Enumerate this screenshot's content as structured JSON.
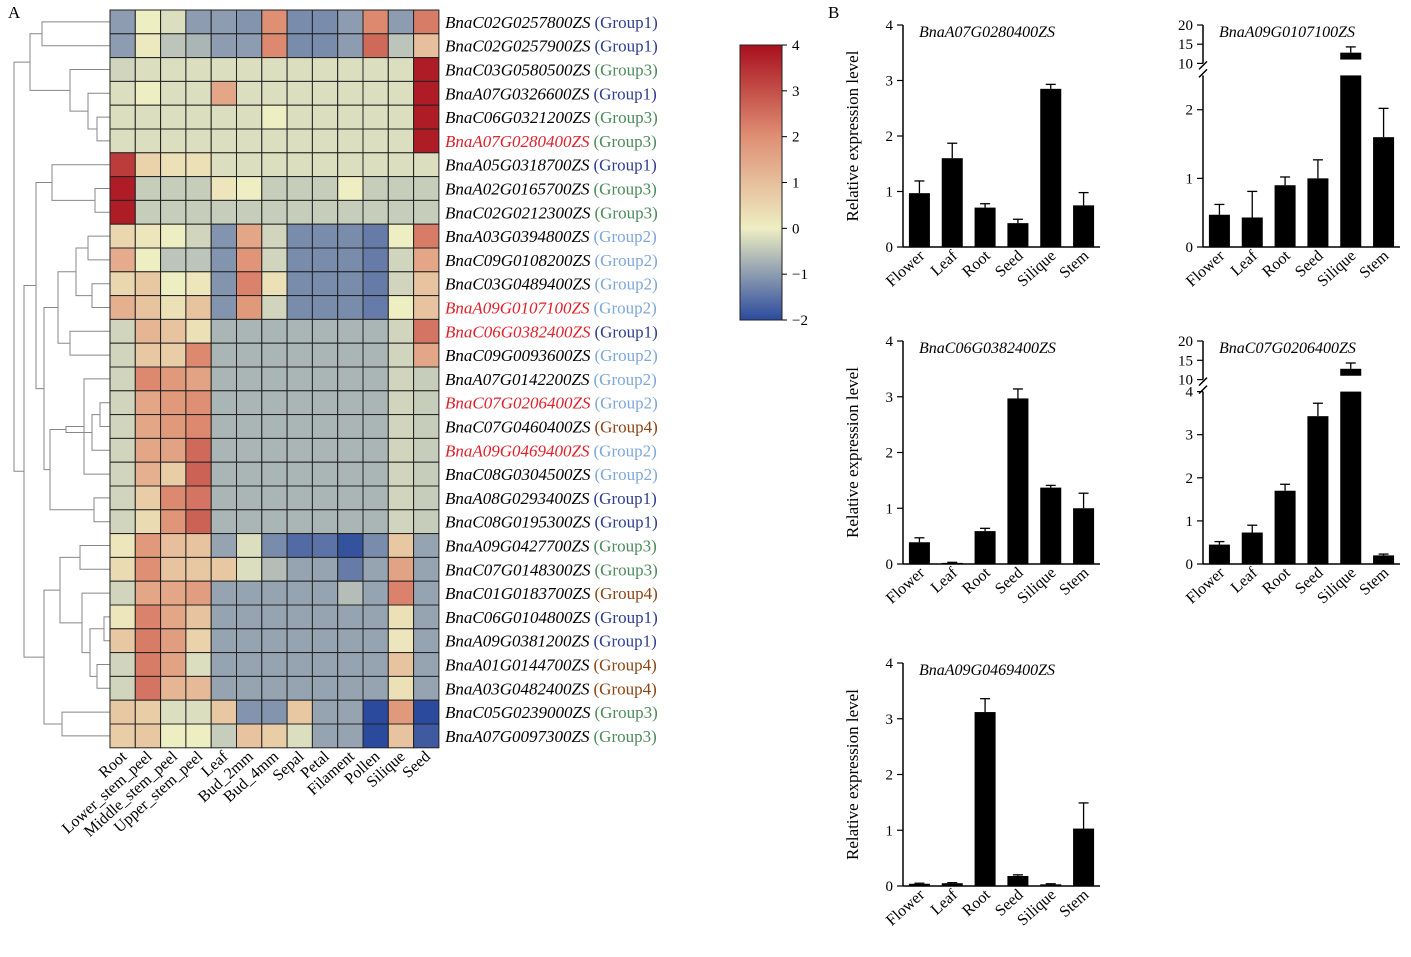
{
  "panel_labels": {
    "A": "A",
    "B": "B"
  },
  "chart_data": [
    {
      "type": "heatmap",
      "columns": [
        "Root",
        "Lower_stem_peel",
        "Middle_stem_peel",
        "Upper_stem_peel",
        "Leaf",
        "Bud_2mm",
        "Bud_4mm",
        "Sepal",
        "Petal",
        "Filament",
        "Pollen",
        "Silique",
        "Seed"
      ],
      "group_colors": {
        "Group1": "#2e3d8f",
        "Group2": "#7ea7d8",
        "Group3": "#4c8a5a",
        "Group4": "#8b4513"
      },
      "highlight_color": "#e0202a",
      "rows": [
        {
          "gene": "BnaC02G0257800ZS",
          "group": "(Group1)",
          "group_key": "Group1",
          "highlight": false,
          "values": [
            -1.0,
            0.0,
            -0.2,
            -1.0,
            -1.0,
            -1.1,
            2.0,
            -1.2,
            -1.2,
            -1.0,
            2.1,
            -1.0,
            2.3
          ]
        },
        {
          "gene": "BnaC02G0257900ZS",
          "group": "(Group1)",
          "group_key": "Group1",
          "highlight": false,
          "values": [
            -1.0,
            0.1,
            -0.5,
            -0.7,
            -1.0,
            -1.0,
            2.1,
            -1.2,
            -1.2,
            -1.0,
            2.6,
            -0.5,
            1.0
          ]
        },
        {
          "gene": "BnaC03G0580500ZS",
          "group": "(Group3)",
          "group_key": "Group3",
          "highlight": false,
          "values": [
            -0.3,
            -0.2,
            -0.2,
            -0.2,
            -0.2,
            -0.2,
            -0.2,
            -0.2,
            -0.2,
            -0.2,
            -0.2,
            -0.2,
            3.8
          ]
        },
        {
          "gene": "BnaA07G0326600ZS",
          "group": "(Group1)",
          "group_key": "Group1",
          "highlight": false,
          "values": [
            -0.2,
            0.0,
            -0.2,
            -0.2,
            1.5,
            -0.2,
            -0.2,
            -0.2,
            -0.2,
            -0.2,
            -0.2,
            -0.2,
            3.8
          ]
        },
        {
          "gene": "BnaC06G0321200ZS",
          "group": "(Group3)",
          "group_key": "Group3",
          "highlight": false,
          "values": [
            -0.2,
            -0.2,
            -0.2,
            -0.2,
            -0.2,
            -0.2,
            0.0,
            -0.2,
            -0.2,
            -0.2,
            -0.2,
            -0.2,
            3.8
          ]
        },
        {
          "gene": "BnaA07G0280400ZS",
          "group": "(Group3)",
          "group_key": "Group3",
          "highlight": true,
          "values": [
            -0.2,
            -0.2,
            -0.2,
            -0.2,
            -0.2,
            -0.2,
            -0.2,
            -0.2,
            -0.2,
            -0.2,
            -0.2,
            -0.2,
            3.8
          ]
        },
        {
          "gene": "BnaA05G0318700ZS",
          "group": "(Group1)",
          "group_key": "Group1",
          "highlight": false,
          "values": [
            3.3,
            0.6,
            0.3,
            0.3,
            -0.2,
            -0.2,
            -0.2,
            -0.2,
            -0.2,
            -0.2,
            -0.2,
            -0.2,
            -0.2
          ]
        },
        {
          "gene": "BnaA02G0165700ZS",
          "group": "(Group3)",
          "group_key": "Group3",
          "highlight": false,
          "values": [
            3.8,
            -0.4,
            -0.4,
            -0.4,
            0.2,
            0.0,
            -0.4,
            -0.4,
            -0.4,
            0.0,
            -0.4,
            -0.4,
            -0.4
          ]
        },
        {
          "gene": "BnaC02G0212300ZS",
          "group": "(Group3)",
          "group_key": "Group3",
          "highlight": false,
          "values": [
            3.8,
            -0.4,
            -0.4,
            -0.4,
            -0.4,
            -0.4,
            -0.4,
            -0.4,
            -0.4,
            -0.4,
            -0.4,
            -0.4,
            -0.4
          ]
        },
        {
          "gene": "BnaA03G0394800ZS",
          "group": "(Group2)",
          "group_key": "Group2",
          "highlight": false,
          "values": [
            0.5,
            0.2,
            0.0,
            -0.3,
            -1.1,
            1.5,
            -0.3,
            -1.2,
            -1.2,
            -1.2,
            -1.4,
            0.0,
            2.3
          ]
        },
        {
          "gene": "BnaC09G0108200ZS",
          "group": "(Group2)",
          "group_key": "Group2",
          "highlight": false,
          "values": [
            1.4,
            0.0,
            -0.5,
            -0.5,
            -1.1,
            1.9,
            -0.3,
            -1.2,
            -1.2,
            -1.2,
            -1.4,
            -0.3,
            1.5
          ]
        },
        {
          "gene": "BnaC03G0489400ZS",
          "group": "(Group2)",
          "group_key": "Group2",
          "highlight": false,
          "values": [
            0.5,
            0.8,
            0.0,
            0.2,
            -1.1,
            2.2,
            0.3,
            -1.2,
            -1.2,
            -1.2,
            -1.4,
            -0.3,
            0.9
          ]
        },
        {
          "gene": "BnaA09G0107100ZS",
          "group": "(Group2)",
          "group_key": "Group2",
          "highlight": true,
          "values": [
            1.3,
            0.9,
            0.3,
            0.9,
            -1.1,
            1.8,
            -0.3,
            -1.2,
            -1.2,
            -1.2,
            -1.4,
            0.0,
            0.9
          ]
        },
        {
          "gene": "BnaC06G0382400ZS",
          "group": "(Group1)",
          "group_key": "Group1",
          "highlight": true,
          "values": [
            -0.3,
            1.2,
            0.9,
            0.3,
            -0.7,
            -0.7,
            -0.7,
            -0.7,
            -0.7,
            -0.7,
            -0.7,
            -0.3,
            2.4
          ]
        },
        {
          "gene": "BnaC09G0093600ZS",
          "group": "(Group2)",
          "group_key": "Group2",
          "highlight": false,
          "values": [
            -0.3,
            0.8,
            0.7,
            2.1,
            -0.7,
            -0.7,
            -0.7,
            -0.7,
            -0.7,
            -0.7,
            -0.7,
            -0.3,
            1.5
          ]
        },
        {
          "gene": "BnaA07G0142200ZS",
          "group": "(Group2)",
          "group_key": "Group2",
          "highlight": false,
          "values": [
            -0.3,
            2.1,
            1.8,
            1.6,
            -0.7,
            -0.7,
            -0.7,
            -0.7,
            -0.7,
            -0.7,
            -0.7,
            -0.3,
            -0.4
          ]
        },
        {
          "gene": "BnaC07G0206400ZS",
          "group": "(Group2)",
          "group_key": "Group2",
          "highlight": true,
          "values": [
            -0.3,
            1.5,
            1.8,
            2.0,
            -0.7,
            -0.7,
            -0.7,
            -0.7,
            -0.7,
            -0.7,
            -0.7,
            -0.3,
            -0.4
          ]
        },
        {
          "gene": "BnaC07G0460400ZS",
          "group": "(Group4)",
          "group_key": "Group4",
          "highlight": false,
          "values": [
            -0.3,
            1.5,
            1.8,
            2.1,
            -0.7,
            -0.7,
            -0.7,
            -0.7,
            -0.7,
            -0.7,
            -0.7,
            -0.3,
            -0.4
          ]
        },
        {
          "gene": "BnaA09G0469400ZS",
          "group": "(Group2)",
          "group_key": "Group2",
          "highlight": true,
          "values": [
            -0.3,
            1.5,
            1.6,
            2.6,
            -0.7,
            -0.7,
            -0.7,
            -0.7,
            -0.7,
            -0.7,
            -0.7,
            -0.3,
            -0.4
          ]
        },
        {
          "gene": "BnaC08G0304500ZS",
          "group": "(Group2)",
          "group_key": "Group2",
          "highlight": false,
          "values": [
            -0.3,
            1.3,
            0.7,
            2.7,
            -0.7,
            -0.7,
            -0.7,
            -0.7,
            -0.7,
            -0.7,
            -0.7,
            -0.3,
            -0.4
          ]
        },
        {
          "gene": "BnaA08G0293400ZS",
          "group": "(Group1)",
          "group_key": "Group1",
          "highlight": false,
          "values": [
            -0.3,
            0.7,
            2.1,
            2.4,
            -0.7,
            -0.7,
            -0.7,
            -0.7,
            -0.7,
            -0.7,
            -0.7,
            -0.3,
            -0.4
          ]
        },
        {
          "gene": "BnaC08G0195300ZS",
          "group": "(Group1)",
          "group_key": "Group1",
          "highlight": false,
          "values": [
            -0.3,
            0.4,
            1.9,
            2.7,
            -0.7,
            -0.7,
            -0.7,
            -0.7,
            -0.7,
            -0.7,
            -0.7,
            -0.3,
            -0.4
          ]
        },
        {
          "gene": "BnaA09G0427700ZS",
          "group": "(Group3)",
          "group_key": "Group3",
          "highlight": false,
          "values": [
            0.2,
            1.8,
            1.0,
            0.9,
            -0.9,
            -0.2,
            -1.2,
            -1.6,
            -1.5,
            -1.9,
            -1.2,
            0.8,
            -0.9
          ]
        },
        {
          "gene": "BnaC07G0148300ZS",
          "group": "(Group3)",
          "group_key": "Group3",
          "highlight": false,
          "values": [
            0.4,
            2.0,
            0.9,
            0.8,
            0.8,
            -0.2,
            -0.6,
            -0.9,
            -0.9,
            -1.4,
            -0.9,
            1.6,
            -0.9
          ]
        },
        {
          "gene": "BnaC01G0183700ZS",
          "group": "(Group4)",
          "group_key": "Group4",
          "highlight": false,
          "values": [
            -0.3,
            1.5,
            1.5,
            1.7,
            -0.9,
            -0.9,
            -0.9,
            -0.9,
            -0.9,
            -0.6,
            -0.9,
            2.2,
            -0.9
          ]
        },
        {
          "gene": "BnaC06G0104800ZS",
          "group": "(Group1)",
          "group_key": "Group1",
          "highlight": false,
          "values": [
            0.2,
            2.2,
            1.5,
            0.9,
            -0.9,
            -0.9,
            -0.9,
            -0.9,
            -0.9,
            -0.9,
            -0.9,
            0.3,
            -0.9
          ]
        },
        {
          "gene": "BnaA09G0381200ZS",
          "group": "(Group1)",
          "group_key": "Group1",
          "highlight": false,
          "values": [
            0.8,
            2.3,
            1.7,
            0.6,
            -0.9,
            -0.9,
            -0.9,
            -0.9,
            -0.9,
            -0.9,
            -0.9,
            0.2,
            -0.9
          ]
        },
        {
          "gene": "BnaA01G0144700ZS",
          "group": "(Group4)",
          "group_key": "Group4",
          "highlight": false,
          "values": [
            -0.3,
            2.3,
            1.6,
            -0.2,
            -0.9,
            -0.9,
            -0.9,
            -0.9,
            -0.9,
            -0.9,
            -0.9,
            0.9,
            -0.9
          ]
        },
        {
          "gene": "BnaA03G0482400ZS",
          "group": "(Group4)",
          "group_key": "Group4",
          "highlight": false,
          "values": [
            -0.3,
            2.4,
            1.2,
            1.1,
            -0.9,
            -0.9,
            -0.9,
            -0.9,
            -0.9,
            -0.9,
            -0.9,
            0.3,
            -0.9
          ]
        },
        {
          "gene": "BnaC05G0239000ZS",
          "group": "(Group3)",
          "group_key": "Group3",
          "highlight": false,
          "values": [
            0.8,
            0.7,
            -0.2,
            -0.2,
            0.8,
            -1.1,
            -1.1,
            0.8,
            -0.9,
            -0.9,
            -2.0,
            1.8,
            -2.0
          ]
        },
        {
          "gene": "BnaA07G0097300ZS",
          "group": "(Group3)",
          "group_key": "Group3",
          "highlight": false,
          "values": [
            0.7,
            0.8,
            0.0,
            0.0,
            -0.4,
            0.9,
            0.7,
            -0.2,
            -0.9,
            -0.9,
            -2.0,
            0.9,
            -1.8
          ]
        }
      ],
      "colorbar": {
        "min": -2,
        "max": 4,
        "ticks": [
          "4",
          "3",
          "2",
          "1",
          "0",
          "−1",
          "−2"
        ],
        "stops": [
          [
            -2,
            "#2b4a9d"
          ],
          [
            0,
            "#eeeec3"
          ],
          [
            2,
            "#df8f74"
          ],
          [
            4,
            "#a90f1d"
          ]
        ]
      }
    },
    {
      "type": "bar",
      "title": "BnaA07G0280400ZS",
      "ylabel": "Relative expression level",
      "categories": [
        "Flower",
        "Leaf",
        "Root",
        "Seed",
        "Silique",
        "Stem"
      ],
      "values": [
        0.97,
        1.6,
        0.71,
        0.43,
        2.85,
        0.75
      ],
      "errors": [
        0.22,
        0.27,
        0.07,
        0.07,
        0.08,
        0.23
      ],
      "ylim": [
        0,
        4
      ],
      "yticks": [
        0,
        1,
        2,
        3,
        4
      ]
    },
    {
      "type": "bar",
      "title": "BnaA09G0107100ZS",
      "categories": [
        "Flower",
        "Leaf",
        "Root",
        "Seed",
        "Silique",
        "Stem"
      ],
      "values": [
        0.47,
        0.43,
        0.9,
        1.0,
        12.8,
        1.6
      ],
      "errors": [
        0.15,
        0.38,
        0.12,
        0.27,
        1.5,
        0.42
      ],
      "axis_break": {
        "lower": [
          0,
          2.5
        ],
        "upper": [
          10,
          20
        ]
      },
      "yticks_lower": [
        0,
        1,
        2
      ],
      "yticks_upper": [
        10,
        15,
        20
      ]
    },
    {
      "type": "bar",
      "title": "BnaC06G0382400ZS",
      "ylabel": "Relative expression level",
      "categories": [
        "Flower",
        "Leaf",
        "Root",
        "Seed",
        "Silique",
        "Stem"
      ],
      "values": [
        0.39,
        0.02,
        0.59,
        2.97,
        1.37,
        1.0
      ],
      "errors": [
        0.08,
        0.01,
        0.05,
        0.17,
        0.04,
        0.27
      ],
      "ylim": [
        0,
        4
      ],
      "yticks": [
        0,
        1,
        2,
        3,
        4
      ]
    },
    {
      "type": "bar",
      "title": "BnaC07G0206400ZS",
      "categories": [
        "Flower",
        "Leaf",
        "Root",
        "Seed",
        "Silique",
        "Stem"
      ],
      "values": [
        0.45,
        0.73,
        1.7,
        3.43,
        12.8,
        0.2
      ],
      "errors": [
        0.07,
        0.17,
        0.15,
        0.3,
        1.5,
        0.03
      ],
      "axis_break": {
        "lower": [
          0,
          4
        ],
        "upper": [
          10,
          20
        ]
      },
      "yticks_lower": [
        0,
        1,
        2,
        3,
        4
      ],
      "yticks_upper": [
        10,
        15,
        20
      ]
    },
    {
      "type": "bar",
      "title": "BnaA09G0469400ZS",
      "ylabel": "Relative expression level",
      "categories": [
        "Flower",
        "Leaf",
        "Root",
        "Seed",
        "Silique",
        "Stem"
      ],
      "values": [
        0.04,
        0.05,
        3.12,
        0.18,
        0.03,
        1.03
      ],
      "errors": [
        0.01,
        0.01,
        0.24,
        0.02,
        0.01,
        0.46
      ],
      "ylim": [
        0,
        4
      ],
      "yticks": [
        0,
        1,
        2,
        3,
        4
      ]
    }
  ]
}
